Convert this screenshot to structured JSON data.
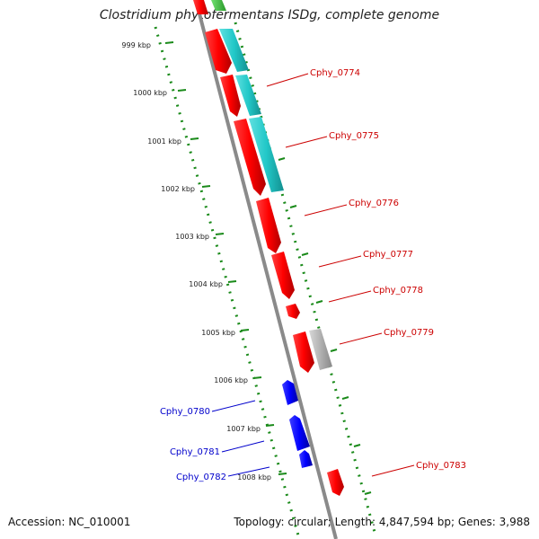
{
  "title": "Clostridium phytofermentans ISDg, complete genome",
  "footer": {
    "accession": "Accession: NC_010001",
    "summary": "Topology: circular; Length: 4,847,594 bp; Genes: 3,988"
  },
  "colors": {
    "forward_cds": "#ff0000",
    "reverse_cds": "#0000ff",
    "cyan_feature": "#22c8c8",
    "gray_feature": "#b0b0b0",
    "green_feature": "#40c040",
    "backbone": "#8a8a8a",
    "ruler": "#1a8a1a",
    "forward_label": "#cc0000",
    "reverse_label": "#0000cc"
  },
  "scale_labels": [
    "999 kbp",
    "1000 kbp",
    "1001 kbp",
    "1002 kbp",
    "1003 kbp",
    "1004 kbp",
    "1005 kbp",
    "1006 kbp",
    "1007 kbp",
    "1008 kbp"
  ],
  "gene_labels": [
    {
      "text": "Cphy_0774",
      "strand": "forward"
    },
    {
      "text": "Cphy_0775",
      "strand": "forward"
    },
    {
      "text": "Cphy_0776",
      "strand": "forward"
    },
    {
      "text": "Cphy_0777",
      "strand": "forward"
    },
    {
      "text": "Cphy_0778",
      "strand": "forward"
    },
    {
      "text": "Cphy_0779",
      "strand": "forward"
    },
    {
      "text": "Cphy_0780",
      "strand": "reverse"
    },
    {
      "text": "Cphy_0781",
      "strand": "reverse"
    },
    {
      "text": "Cphy_0782",
      "strand": "reverse"
    },
    {
      "text": "Cphy_0783",
      "strand": "forward"
    }
  ]
}
